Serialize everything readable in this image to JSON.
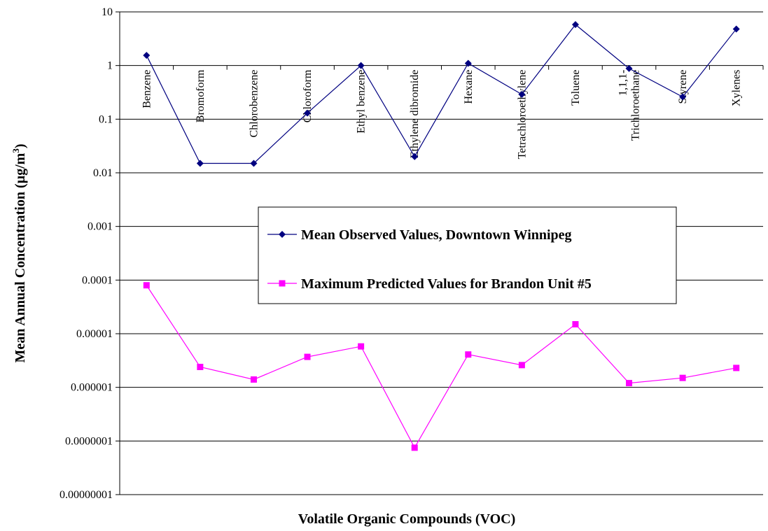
{
  "chart_data": {
    "type": "line",
    "title": "",
    "xlabel": "Volatile Organic Compounds (VOC)",
    "ylabel": "Mean Annual Concentration (µg/m",
    "ylabel_superscript": "3",
    "ylabel_suffix": ")",
    "yscale": "log",
    "ylim": [
      1e-08,
      10
    ],
    "yticks": [
      {
        "value": 10,
        "label": "10"
      },
      {
        "value": 1,
        "label": "1"
      },
      {
        "value": 0.1,
        "label": "0.1"
      },
      {
        "value": 0.01,
        "label": "0.01"
      },
      {
        "value": 0.001,
        "label": "0.001"
      },
      {
        "value": 0.0001,
        "label": "0.0001"
      },
      {
        "value": 1e-05,
        "label": "0.00001"
      },
      {
        "value": 1e-06,
        "label": "0.000001"
      },
      {
        "value": 1e-07,
        "label": "0.0000001"
      },
      {
        "value": 1e-08,
        "label": "0.00000001"
      }
    ],
    "grid": true,
    "legend_position": "center",
    "categories": [
      [
        "Benzene"
      ],
      [
        "Bromoform"
      ],
      [
        "Chlorobenzene"
      ],
      [
        "Chloroform"
      ],
      [
        "Ethyl benzene"
      ],
      [
        "Ethylene dibromide"
      ],
      [
        "Hexane"
      ],
      [
        "Tetrachloroethylene"
      ],
      [
        "Toluene"
      ],
      [
        "1,1,1-",
        "Trichloroethane"
      ],
      [
        "Styrene"
      ],
      [
        "Xylenes"
      ]
    ],
    "series": [
      {
        "name": "Mean Observed Values, Downtown Winnipeg",
        "color": "#000080",
        "marker": "diamond",
        "values": [
          1.55,
          0.015,
          0.015,
          0.13,
          1.0,
          0.02,
          1.1,
          0.29,
          5.8,
          0.88,
          0.26,
          4.8
        ]
      },
      {
        "name": "Maximum Predicted Values for Brandon Unit #5",
        "color": "#FF00FF",
        "marker": "square",
        "values": [
          8e-05,
          2.4e-06,
          1.4e-06,
          3.7e-06,
          5.8e-06,
          7.5e-08,
          4.1e-06,
          2.6e-06,
          1.5e-05,
          1.2e-06,
          1.5e-06,
          2.3e-06
        ]
      }
    ]
  }
}
